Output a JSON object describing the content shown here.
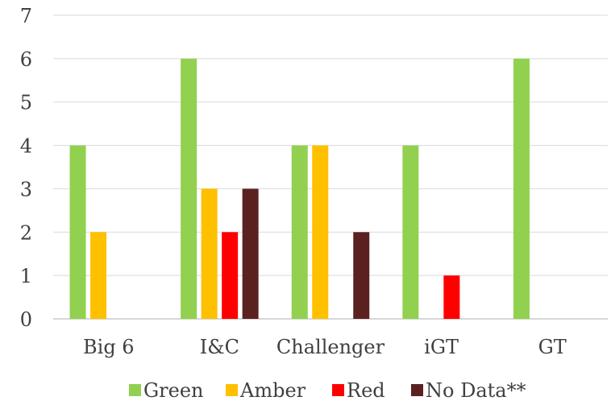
{
  "chart_data": {
    "type": "bar",
    "categories": [
      "Big 6",
      "I&C",
      "Challenger",
      "iGT",
      "GT"
    ],
    "series": [
      {
        "name": "Green",
        "color": "#92D050",
        "values": [
          4,
          6,
          4,
          4,
          6
        ]
      },
      {
        "name": "Amber",
        "color": "#FFC000",
        "values": [
          2,
          3,
          4,
          0,
          0
        ]
      },
      {
        "name": "Red",
        "color": "#FF0000",
        "values": [
          0,
          2,
          0,
          1,
          0
        ]
      },
      {
        "name": "No Data**",
        "color": "#5B2121",
        "values": [
          0,
          3,
          2,
          0,
          0
        ]
      }
    ],
    "title": "",
    "xlabel": "",
    "ylabel": "",
    "ylim": [
      0,
      7
    ],
    "yticks": [
      "0",
      "1",
      "2",
      "3",
      "4",
      "5",
      "6",
      "7"
    ],
    "grid": true,
    "legend_position": "bottom"
  }
}
